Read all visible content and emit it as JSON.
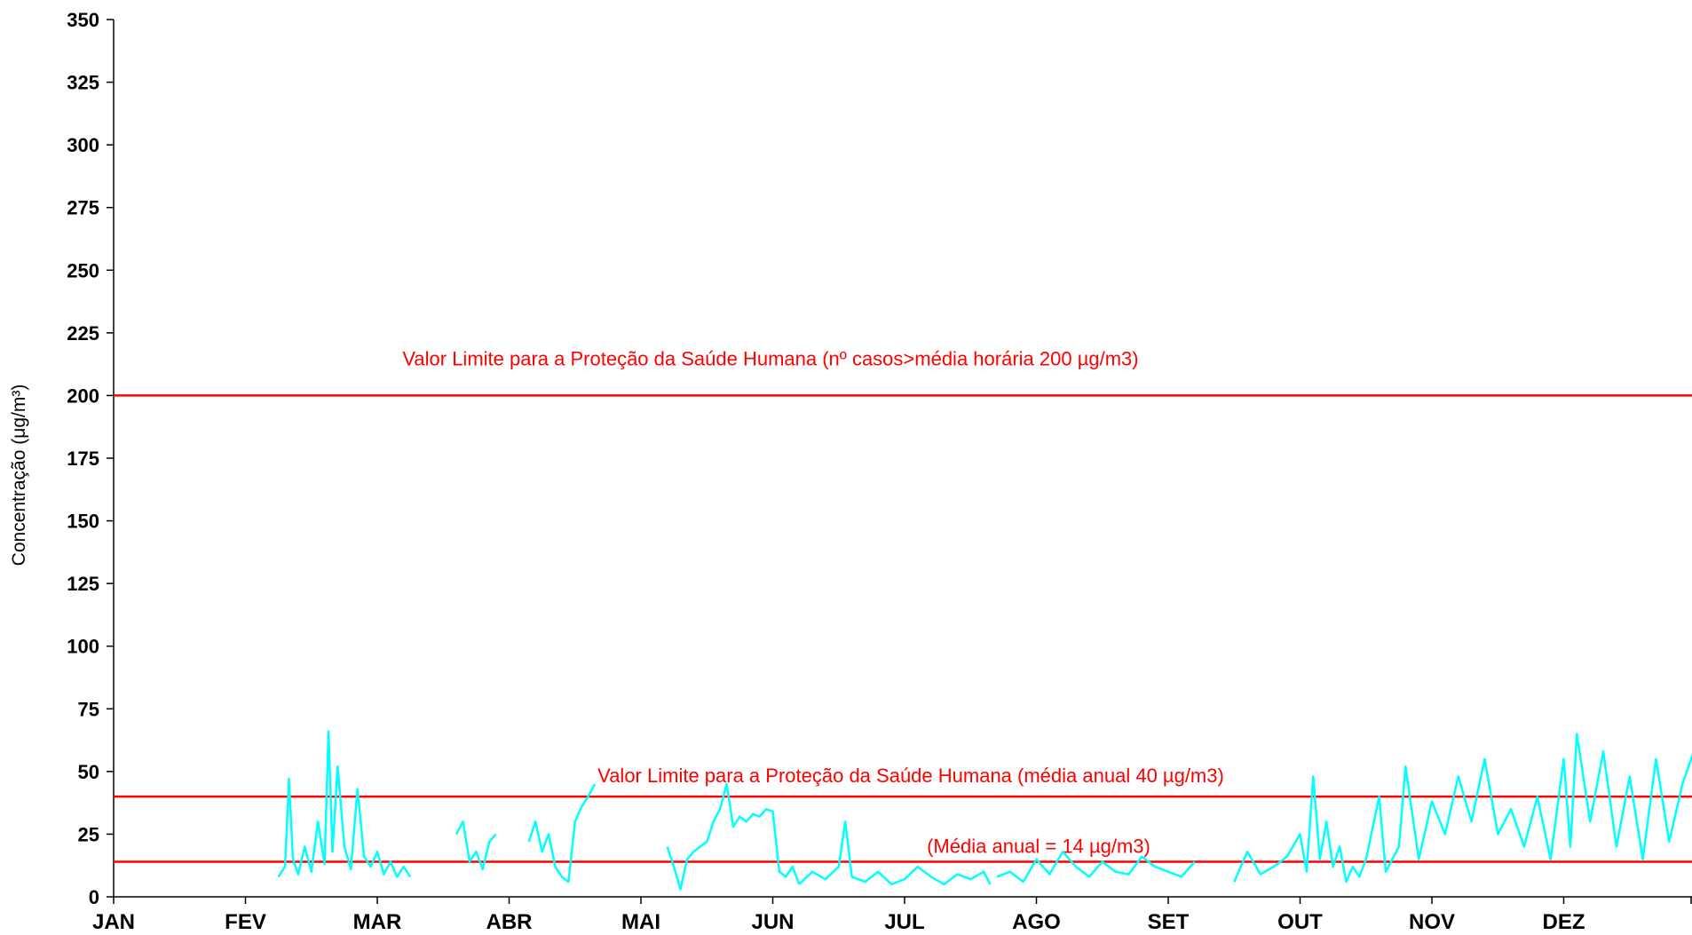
{
  "chart_data": {
    "type": "line",
    "title": "",
    "xlabel": "",
    "ylabel": "Concentração (μg/m³)",
    "ylim": [
      0,
      350
    ],
    "yticks": [
      0,
      25,
      50,
      75,
      100,
      125,
      150,
      175,
      200,
      225,
      250,
      275,
      300,
      325,
      350
    ],
    "categories": [
      "JAN",
      "FEV",
      "MAR",
      "ABR",
      "MAI",
      "JUN",
      "JUL",
      "AGO",
      "SET",
      "OUT",
      "NOV",
      "DEZ"
    ],
    "grid": false,
    "legend": "none",
    "series_color": "#00ffff",
    "reference_color": "#ff0000",
    "reference_lines": [
      {
        "value": 200,
        "label": "Valor Limite para a Proteção da Saúde Humana (nº casos>média horária 200 µg/m3)"
      },
      {
        "value": 40,
        "label": "Valor Limite para a Proteção da Saúde Humana (média anual 40 µg/m3)"
      },
      {
        "value": 14,
        "label": "(Média anual = 14 µg/m3)"
      }
    ],
    "series": [
      {
        "unit": "month",
        "segments": [
          {
            "start": 1.25,
            "end": 2.25,
            "points": [
              [
                1.25,
                8
              ],
              [
                1.3,
                12
              ],
              [
                1.33,
                47
              ],
              [
                1.36,
                15
              ],
              [
                1.4,
                9
              ],
              [
                1.45,
                20
              ],
              [
                1.5,
                10
              ],
              [
                1.55,
                30
              ],
              [
                1.6,
                13
              ],
              [
                1.63,
                66
              ],
              [
                1.66,
                18
              ],
              [
                1.7,
                52
              ],
              [
                1.75,
                20
              ],
              [
                1.8,
                11
              ],
              [
                1.85,
                43
              ],
              [
                1.9,
                16
              ],
              [
                1.95,
                12
              ],
              [
                2.0,
                18
              ],
              [
                2.05,
                9
              ],
              [
                2.1,
                14
              ],
              [
                2.15,
                8
              ],
              [
                2.2,
                12
              ],
              [
                2.25,
                8
              ]
            ]
          },
          {
            "start": 2.6,
            "end": 2.9,
            "points": [
              [
                2.6,
                25
              ],
              [
                2.65,
                30
              ],
              [
                2.7,
                14
              ],
              [
                2.75,
                18
              ],
              [
                2.8,
                11
              ],
              [
                2.85,
                22
              ],
              [
                2.9,
                25
              ]
            ]
          },
          {
            "start": 3.15,
            "end": 3.65,
            "points": [
              [
                3.15,
                22
              ],
              [
                3.2,
                30
              ],
              [
                3.25,
                18
              ],
              [
                3.3,
                25
              ],
              [
                3.35,
                12
              ],
              [
                3.4,
                8
              ],
              [
                3.45,
                6
              ],
              [
                3.5,
                30
              ],
              [
                3.55,
                36
              ],
              [
                3.6,
                40
              ],
              [
                3.65,
                45
              ]
            ]
          },
          {
            "start": 4.2,
            "end": 5.2,
            "points": [
              [
                4.2,
                20
              ],
              [
                4.25,
                12
              ],
              [
                4.3,
                3
              ],
              [
                4.35,
                15
              ],
              [
                4.4,
                18
              ],
              [
                4.45,
                20
              ],
              [
                4.5,
                22
              ],
              [
                4.55,
                30
              ],
              [
                4.6,
                35
              ],
              [
                4.65,
                45
              ],
              [
                4.7,
                28
              ],
              [
                4.75,
                32
              ],
              [
                4.8,
                30
              ],
              [
                4.85,
                33
              ],
              [
                4.9,
                32
              ],
              [
                4.95,
                35
              ],
              [
                5.0,
                34
              ],
              [
                5.05,
                10
              ],
              [
                5.1,
                8
              ],
              [
                5.15,
                12
              ],
              [
                5.2,
                5
              ]
            ]
          },
          {
            "start": 5.2,
            "end": 6.65,
            "points": [
              [
                5.2,
                5
              ],
              [
                5.3,
                10
              ],
              [
                5.4,
                7
              ],
              [
                5.5,
                12
              ],
              [
                5.55,
                30
              ],
              [
                5.6,
                8
              ],
              [
                5.7,
                6
              ],
              [
                5.8,
                10
              ],
              [
                5.9,
                5
              ],
              [
                6.0,
                7
              ],
              [
                6.1,
                12
              ],
              [
                6.2,
                8
              ],
              [
                6.3,
                5
              ],
              [
                6.4,
                9
              ],
              [
                6.5,
                7
              ],
              [
                6.6,
                10
              ],
              [
                6.65,
                5
              ]
            ]
          },
          {
            "start": 6.7,
            "end": 8.2,
            "points": [
              [
                6.7,
                8
              ],
              [
                6.8,
                10
              ],
              [
                6.9,
                6
              ],
              [
                7.0,
                15
              ],
              [
                7.1,
                9
              ],
              [
                7.2,
                18
              ],
              [
                7.3,
                12
              ],
              [
                7.4,
                8
              ],
              [
                7.5,
                14
              ],
              [
                7.6,
                10
              ],
              [
                7.7,
                9
              ],
              [
                7.8,
                16
              ],
              [
                7.9,
                12
              ],
              [
                8.0,
                10
              ],
              [
                8.1,
                8
              ],
              [
                8.2,
                14
              ]
            ]
          },
          {
            "start": 8.5,
            "end": 9.5,
            "points": [
              [
                8.5,
                6
              ],
              [
                8.6,
                18
              ],
              [
                8.7,
                9
              ],
              [
                8.8,
                12
              ],
              [
                8.9,
                16
              ],
              [
                9.0,
                25
              ],
              [
                9.05,
                10
              ],
              [
                9.1,
                48
              ],
              [
                9.15,
                15
              ],
              [
                9.2,
                30
              ],
              [
                9.25,
                12
              ],
              [
                9.3,
                20
              ],
              [
                9.35,
                6
              ],
              [
                9.4,
                12
              ],
              [
                9.45,
                8
              ],
              [
                9.5,
                15
              ]
            ]
          },
          {
            "start": 9.5,
            "end": 12.15,
            "points": [
              [
                9.5,
                15
              ],
              [
                9.6,
                40
              ],
              [
                9.65,
                10
              ],
              [
                9.75,
                20
              ],
              [
                9.8,
                52
              ],
              [
                9.9,
                15
              ],
              [
                10.0,
                38
              ],
              [
                10.1,
                25
              ],
              [
                10.2,
                48
              ],
              [
                10.3,
                30
              ],
              [
                10.4,
                55
              ],
              [
                10.5,
                25
              ],
              [
                10.6,
                35
              ],
              [
                10.7,
                20
              ],
              [
                10.8,
                40
              ],
              [
                10.9,
                15
              ],
              [
                11.0,
                55
              ],
              [
                11.05,
                20
              ],
              [
                11.1,
                65
              ],
              [
                11.2,
                30
              ],
              [
                11.3,
                58
              ],
              [
                11.4,
                20
              ],
              [
                11.5,
                48
              ],
              [
                11.6,
                15
              ],
              [
                11.7,
                55
              ],
              [
                11.8,
                22
              ],
              [
                11.9,
                45
              ],
              [
                12.0,
                60
              ],
              [
                12.05,
                15
              ],
              [
                12.1,
                30
              ],
              [
                12.15,
                5
              ]
            ]
          }
        ]
      }
    ]
  }
}
